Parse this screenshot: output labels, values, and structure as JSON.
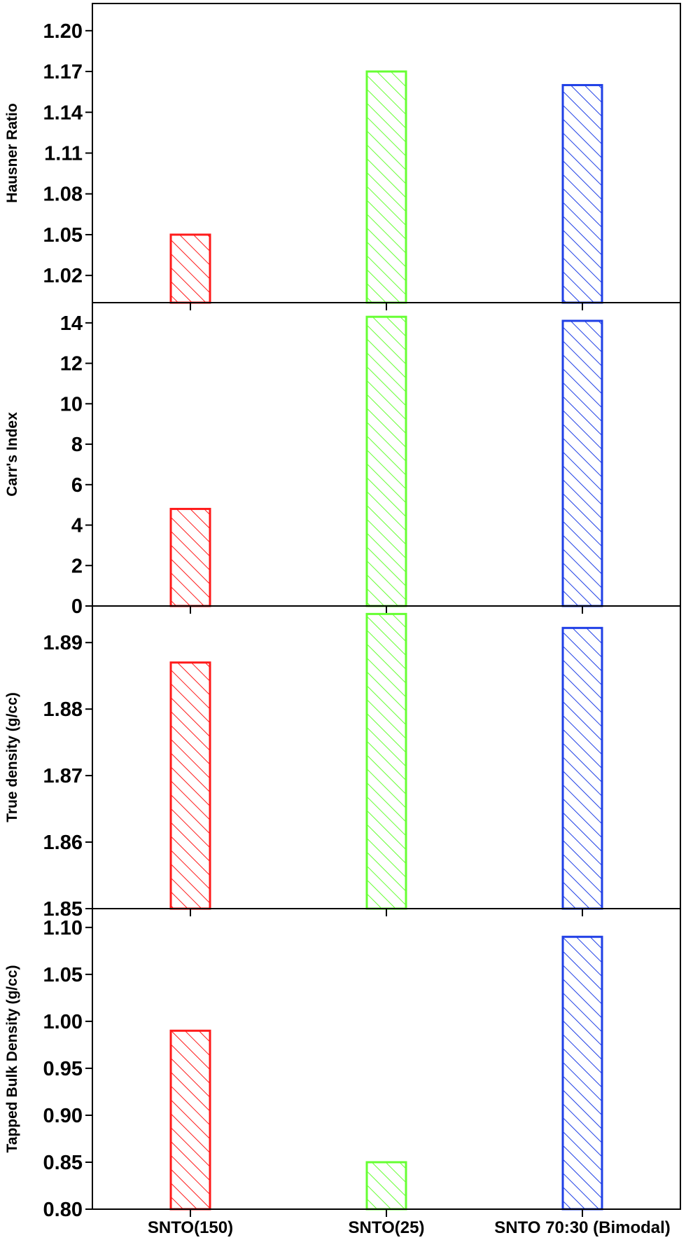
{
  "chart_data": {
    "type": "bar",
    "categories": [
      "SNTO(150)",
      "SNTO(25)",
      "SNTO 70:30 (Bimodal)"
    ],
    "colors": [
      "#ff1a1a",
      "#66ff33",
      "#1f3fe6"
    ],
    "bar_fill": "hatched",
    "panels": [
      {
        "ylabel": "Hausner Ratio",
        "ylim": [
          1.0,
          1.22
        ],
        "yticks": [
          "1.02",
          "1.05",
          "1.08",
          "1.11",
          "1.14",
          "1.17",
          "1.20"
        ],
        "values": [
          1.05,
          1.17,
          1.16
        ]
      },
      {
        "ylabel": "Carr's Index",
        "ylim": [
          0,
          15
        ],
        "yticks": [
          "0",
          "2",
          "4",
          "6",
          "8",
          "10",
          "12",
          "14"
        ],
        "values": [
          4.8,
          14.3,
          14.1
        ]
      },
      {
        "ylabel": "True density (g/cc)",
        "ylim": [
          1.85,
          1.8955
        ],
        "yticks": [
          "1.85",
          "1.86",
          "1.87",
          "1.88",
          "1.89"
        ],
        "values": [
          1.887,
          1.8943,
          1.8922
        ]
      },
      {
        "ylabel": "Tapped Bulk Density (g/cc)",
        "ylim": [
          0.8,
          1.12
        ],
        "yticks": [
          "0.80",
          "0.85",
          "0.90",
          "0.95",
          "1.00",
          "1.05",
          "1.10"
        ],
        "values": [
          0.99,
          0.85,
          1.09
        ]
      }
    ]
  }
}
